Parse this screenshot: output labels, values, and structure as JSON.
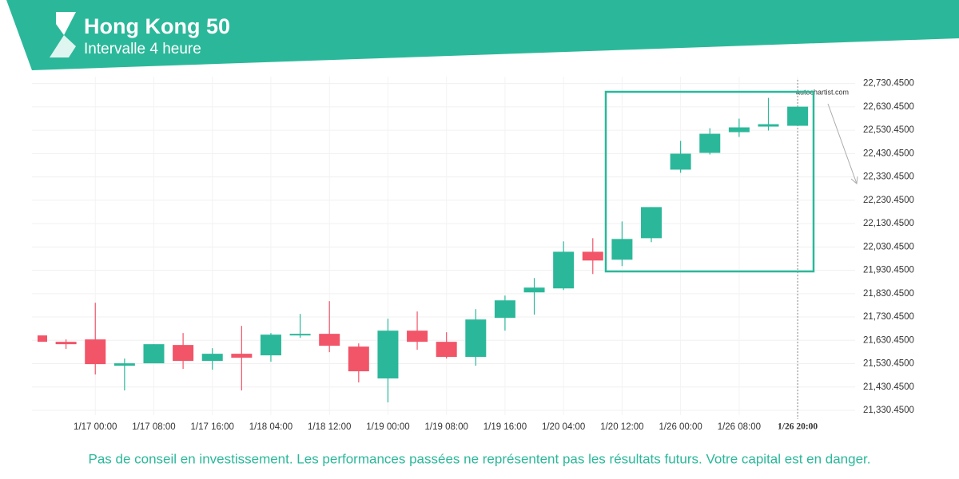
{
  "chart_data": {
    "type": "candlestick",
    "title": "Hong Kong 50",
    "subtitle": "Intervalle 4 heure",
    "watermark": "autochartist.com",
    "disclaimer": "Pas de conseil en investissement. Les performances passées ne représentent pas les résultats futurs. Votre capital est en danger.",
    "categories": [
      null,
      null,
      "1/17 00:00",
      null,
      "1/17 08:00",
      null,
      "1/17 16:00",
      null,
      "1/18 04:00",
      null,
      "1/18 12:00",
      null,
      "1/19 00:00",
      null,
      "1/19 08:00",
      null,
      "1/19 16:00",
      null,
      "1/20 04:00",
      null,
      "1/20 12:00",
      null,
      "1/26 00:00",
      null,
      "1/26 08:00",
      null,
      "1/26 20:00"
    ],
    "open": [
      21651.4,
      21624.1,
      21634.3,
      21521.6,
      21532.0,
      21610.5,
      21542.2,
      21572.9,
      21566.1,
      21651.4,
      21658.3,
      21603.6,
      21467.1,
      21671.9,
      21624.1,
      21559.3,
      21726.6,
      21835.8,
      21852.9,
      22009.9,
      21975.8,
      22068.0,
      22361.7,
      22433.4,
      22522.2,
      22546.1,
      22549.5
    ],
    "high": [
      21651.4,
      21634.3,
      21791.4,
      21552.4,
      21613.9,
      21661.7,
      21596.8,
      21692.4,
      21661.7,
      21743.6,
      21798.3,
      21617.3,
      21723.1,
      21753.9,
      21665.1,
      21764.1,
      21822.2,
      21897.3,
      22054.4,
      22068.0,
      22139.7,
      22201.2,
      22484.6,
      22539.2,
      22580.2,
      22669.0,
      22631.4
    ],
    "low": [
      21624.1,
      21593.4,
      21484.1,
      21415.8,
      21532.0,
      21508.0,
      21504.6,
      21415.8,
      21538.7,
      21641.2,
      21579.7,
      21450.0,
      21364.6,
      21590.0,
      21552.4,
      21521.6,
      21671.9,
      21740.2,
      21846.1,
      21914.4,
      21948.5,
      22051.0,
      22348.0,
      22426.5,
      22501.7,
      22529.0,
      22549.5
    ],
    "close": [
      21624.1,
      21613.9,
      21528.5,
      21532.0,
      21613.9,
      21542.2,
      21572.9,
      21555.9,
      21654.8,
      21658.3,
      21607.1,
      21497.8,
      21671.9,
      21624.1,
      21559.3,
      21719.7,
      21801.7,
      21856.3,
      22009.9,
      21972.4,
      22064.6,
      22201.2,
      22430.0,
      22515.3,
      22542.7,
      22556.3,
      22631.4
    ],
    "up_color": "#2bb89a",
    "down_color": "#f25468",
    "ylim": [
      21310,
      22760
    ],
    "yticks": [
      {
        "value": 21330.45,
        "label": "21,330.4500"
      },
      {
        "value": 21430.45,
        "label": "21,430.4500"
      },
      {
        "value": 21530.45,
        "label": "21,530.4500"
      },
      {
        "value": 21630.45,
        "label": "21,630.4500"
      },
      {
        "value": 21730.45,
        "label": "21,730.4500"
      },
      {
        "value": 21830.45,
        "label": "21,830.4500"
      },
      {
        "value": 21930.45,
        "label": "21,930.4500"
      },
      {
        "value": 22030.45,
        "label": "22,030.4500"
      },
      {
        "value": 22130.45,
        "label": "22,130.4500"
      },
      {
        "value": 22230.45,
        "label": "22,230.4500"
      },
      {
        "value": 22330.45,
        "label": "22,330.4500"
      },
      {
        "value": 22430.45,
        "label": "22,430.4500"
      },
      {
        "value": 22530.45,
        "label": "22,530.4500"
      },
      {
        "value": 22630.45,
        "label": "22,630.4500"
      },
      {
        "value": 22730.45,
        "label": "22,730.4500"
      }
    ],
    "grid": true
  }
}
